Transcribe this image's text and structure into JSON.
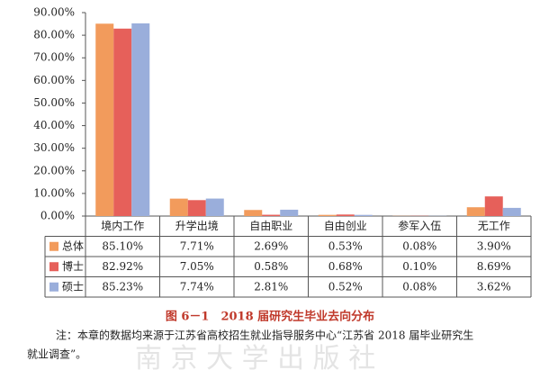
{
  "chart_data": {
    "type": "bar",
    "caption": "图 6－1　2018 届研究生毕业去向分布",
    "caption_color": "#c0392b",
    "note_lines": [
      "注：本章的数据均来源于江苏省高校招生就业指导服务中心“江苏省 2018 届毕业研究生",
      "就业调查”。"
    ],
    "watermark": "南 京 大 学 出 版 社",
    "categories": [
      "境内工作",
      "升学出境",
      "自由职业",
      "自由创业",
      "参军入伍",
      "无工作"
    ],
    "series": [
      {
        "name": "总体",
        "color": "#f29b5c",
        "values": [
          85.1,
          7.71,
          2.69,
          0.53,
          0.08,
          3.9
        ],
        "value_labels": [
          "85.10%",
          "7.71%",
          "2.69%",
          "0.53%",
          "0.08%",
          "3.90%"
        ]
      },
      {
        "name": "博士",
        "color": "#e6605a",
        "values": [
          82.92,
          7.05,
          0.58,
          0.68,
          0.1,
          8.69
        ],
        "value_labels": [
          "82.92%",
          "7.05%",
          "0.58%",
          "0.68%",
          "0.10%",
          "8.69%"
        ]
      },
      {
        "name": "硕士",
        "color": "#9aaedb",
        "values": [
          85.23,
          7.74,
          2.81,
          0.52,
          0.08,
          3.62
        ],
        "value_labels": [
          "85.23%",
          "7.74%",
          "2.81%",
          "0.52%",
          "0.08%",
          "3.62%"
        ]
      }
    ],
    "ylim": [
      0,
      90
    ],
    "yticks": [
      {
        "value": 0,
        "label": "0.00%"
      },
      {
        "value": 10,
        "label": "10.00%"
      },
      {
        "value": 20,
        "label": "20.00%"
      },
      {
        "value": 30,
        "label": "30.00%"
      },
      {
        "value": 40,
        "label": "40.00%"
      },
      {
        "value": 50,
        "label": "50.00%"
      },
      {
        "value": 60,
        "label": "60.00%"
      },
      {
        "value": 70,
        "label": "70.00%"
      },
      {
        "value": 80,
        "label": "80.00%"
      },
      {
        "value": 90,
        "label": "90.00%"
      }
    ]
  }
}
